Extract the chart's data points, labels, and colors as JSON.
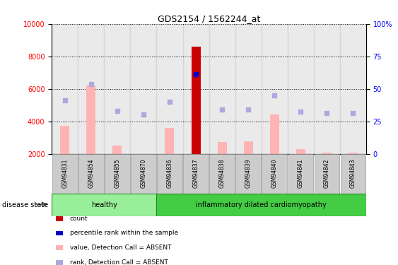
{
  "title": "GDS2154 / 1562244_at",
  "samples": [
    "GSM94831",
    "GSM94854",
    "GSM94855",
    "GSM94870",
    "GSM94836",
    "GSM94837",
    "GSM94838",
    "GSM94839",
    "GSM94840",
    "GSM94841",
    "GSM94842",
    "GSM94843"
  ],
  "healthy_count": 4,
  "disease_count": 8,
  "ylim_left": [
    2000,
    10000
  ],
  "ylim_right": [
    0,
    100
  ],
  "yticks_left": [
    2000,
    4000,
    6000,
    8000,
    10000
  ],
  "yticks_right": [
    0,
    25,
    50,
    75,
    100
  ],
  "bar_values": [
    3700,
    6200,
    2500,
    1900,
    3600,
    8600,
    2700,
    2750,
    4400,
    2300,
    2050,
    2050
  ],
  "bar_colors": [
    "#ffb3b3",
    "#ffb3b3",
    "#ffb3b3",
    "#ffb3b3",
    "#ffb3b3",
    "#cc0000",
    "#ffb3b3",
    "#ffb3b3",
    "#ffb3b3",
    "#ffb3b3",
    "#ffb3b3",
    "#ffb3b3"
  ],
  "scatter_rank_values": [
    5300,
    6300,
    4650,
    4400,
    5200,
    6900,
    4700,
    4700,
    5600,
    4600,
    4500,
    4500
  ],
  "scatter_rank_colors": [
    "#aaaadd",
    "#aaaadd",
    "#aaaadd",
    "#aaaadd",
    "#aaaadd",
    "#0000cc",
    "#aaaadd",
    "#aaaadd",
    "#aaaadd",
    "#aaaadd",
    "#aaaadd",
    "#aaaadd"
  ],
  "healthy_label": "healthy",
  "disease_label": "inflammatory dilated cardiomyopathy",
  "disease_state_label": "disease state",
  "healthy_color": "#99ee99",
  "disease_color": "#44cc44",
  "sample_bg_color": "#cccccc",
  "legend_items": [
    {
      "color": "#cc0000",
      "label": "count"
    },
    {
      "color": "#0000cc",
      "label": "percentile rank within the sample"
    },
    {
      "color": "#ffb3b3",
      "label": "value, Detection Call = ABSENT"
    },
    {
      "color": "#aaaadd",
      "label": "rank, Detection Call = ABSENT"
    }
  ]
}
